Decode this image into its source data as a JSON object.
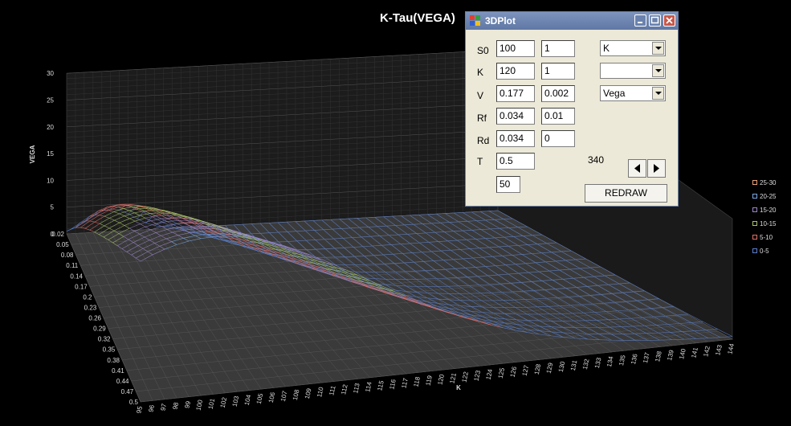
{
  "chart_data": {
    "type": "surface",
    "title": "K-Tau(VEGA)",
    "zlabel": "VEGA",
    "xlabel": "K",
    "zlim": [
      0,
      30
    ],
    "z_ticks": [
      "30",
      "25",
      "20",
      "15",
      "10",
      "5",
      "0"
    ],
    "tau_ticks": [
      "0.02",
      "0.05",
      "0.08",
      "0.11",
      "0.14",
      "0.17",
      "0.2",
      "0.23",
      "0.26",
      "0.29",
      "0.32",
      "0.35",
      "0.38",
      "0.41",
      "0.44",
      "0.47",
      "0.5"
    ],
    "k_ticks": [
      "95",
      "96",
      "97",
      "98",
      "99",
      "100",
      "101",
      "102",
      "103",
      "104",
      "105",
      "106",
      "107",
      "108",
      "109",
      "110",
      "111",
      "112",
      "113",
      "114",
      "115",
      "116",
      "117",
      "118",
      "119",
      "120",
      "121",
      "122",
      "123",
      "124",
      "125",
      "126",
      "127",
      "128",
      "129",
      "130",
      "131",
      "132",
      "133",
      "134",
      "135",
      "136",
      "137",
      "138",
      "139",
      "140",
      "141",
      "142",
      "143",
      "144"
    ],
    "legend": [
      {
        "label": "25-30",
        "color": "#e8a27a"
      },
      {
        "label": "20-25",
        "color": "#7aa7e0"
      },
      {
        "label": "15-20",
        "color": "#9a86c8"
      },
      {
        "label": "10-15",
        "color": "#a8c46a"
      },
      {
        "label": "5-10",
        "color": "#e07068"
      },
      {
        "label": "0-5",
        "color": "#5c7fc8"
      }
    ],
    "grid": true,
    "legend_position": "right"
  },
  "dialog": {
    "title": "3DPlot",
    "rows": [
      {
        "label": "S0",
        "value": "100",
        "step": "1"
      },
      {
        "label": "K",
        "value": "120",
        "step": "1"
      },
      {
        "label": "V",
        "value": "0.177",
        "step": "0.002"
      },
      {
        "label": "Rf",
        "value": "0.034",
        "step": "0.01"
      },
      {
        "label": "Rd",
        "value": "0.034",
        "step": "0"
      },
      {
        "label": "T",
        "value": "0.5",
        "step": ""
      }
    ],
    "points": "50",
    "combo1": "K",
    "combo2": "",
    "combo3": "Vega",
    "angle": "340",
    "redraw_label": "REDRAW"
  }
}
